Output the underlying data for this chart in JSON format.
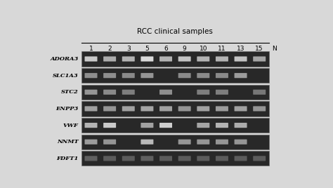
{
  "title": "RCC clinical samples",
  "sample_labels": [
    "1",
    "2",
    "3",
    "5",
    "6",
    "9",
    "10",
    "11",
    "13",
    "15"
  ],
  "n_label": "N",
  "gene_labels": [
    "ADORA3",
    "SLC1A3",
    "STC2",
    "ENPP3",
    "VWF",
    "NNMT",
    "FDFT1"
  ],
  "gel_bg": "#282828",
  "figure_bg": "#d8d8d8",
  "band_intensity": {
    "ADORA3": [
      0.88,
      0.75,
      0.78,
      0.95,
      0.78,
      0.85,
      0.78,
      0.78,
      0.85,
      0.72
    ],
    "SLC1A3": [
      0.62,
      0.62,
      0.6,
      0.65,
      0.0,
      0.6,
      0.6,
      0.6,
      0.68,
      0.0
    ],
    "STC2": [
      0.65,
      0.6,
      0.55,
      0.0,
      0.62,
      0.0,
      0.55,
      0.55,
      0.0,
      0.52
    ],
    "ENPP3": [
      0.7,
      0.65,
      0.7,
      0.72,
      0.7,
      0.65,
      0.7,
      0.68,
      0.7,
      0.65
    ],
    "VWF": [
      0.78,
      0.88,
      0.0,
      0.7,
      0.9,
      0.0,
      0.72,
      0.78,
      0.75,
      0.0
    ],
    "NNMT": [
      0.68,
      0.65,
      0.0,
      0.8,
      0.0,
      0.65,
      0.65,
      0.65,
      0.65,
      0.0
    ],
    "FDFT1": [
      0.42,
      0.4,
      0.4,
      0.42,
      0.4,
      0.4,
      0.4,
      0.4,
      0.4,
      0.4
    ]
  },
  "row_gaps": [
    1,
    1,
    1,
    1,
    1,
    1,
    0
  ],
  "title_fontsize": 7.5,
  "label_fontsize": 6.0,
  "tick_fontsize": 6.5
}
